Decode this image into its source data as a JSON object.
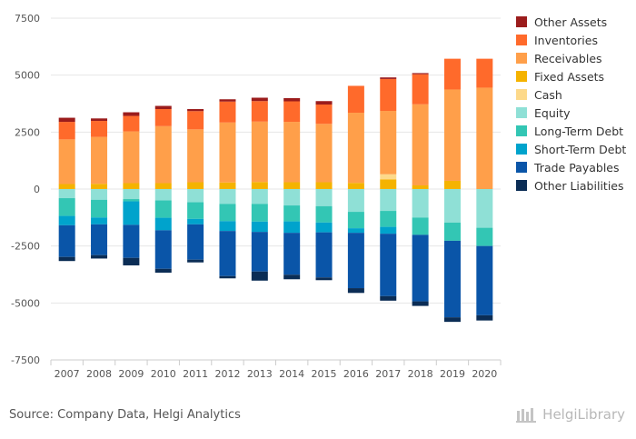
{
  "chart_data": {
    "type": "bar",
    "stacked": true,
    "categories": [
      "2007",
      "2008",
      "2009",
      "2010",
      "2011",
      "2012",
      "2013",
      "2014",
      "2015",
      "2016",
      "2017",
      "2018",
      "2019",
      "2020"
    ],
    "ylim": [
      -7500,
      7500
    ],
    "yticks": [
      -7500,
      -5000,
      -2500,
      0,
      2500,
      5000,
      7500
    ],
    "ytick_labels": [
      "-7500",
      "-5000",
      "-2500",
      "0",
      "2500",
      "5000",
      "7500"
    ],
    "grid": true,
    "legend_position": "right",
    "assets": [
      {
        "name": "Fixed Assets",
        "color": "#f5b300",
        "values": [
          220,
          230,
          260,
          260,
          300,
          290,
          310,
          300,
          300,
          270,
          420,
          160,
          360,
          0
        ]
      },
      {
        "name": "Cash",
        "color": "#fdd98a",
        "values": [
          0,
          0,
          0,
          0,
          0,
          0,
          0,
          0,
          0,
          0,
          230,
          0,
          0,
          0
        ]
      },
      {
        "name": "Receivables",
        "color": "#ff9f4a",
        "values": [
          1960,
          2060,
          2270,
          2500,
          2320,
          2630,
          2650,
          2650,
          2560,
          3080,
          2780,
          3560,
          4010,
          4450
        ]
      },
      {
        "name": "Inventories",
        "color": "#ff6a2b",
        "values": [
          770,
          700,
          680,
          750,
          800,
          920,
          900,
          900,
          850,
          1180,
          1400,
          1320,
          1350,
          1270
        ]
      },
      {
        "name": "Other Assets",
        "color": "#9b1c1c",
        "values": [
          180,
          110,
          160,
          140,
          90,
          100,
          150,
          140,
          150,
          0,
          70,
          50,
          0,
          0
        ]
      }
    ],
    "liabilities": [
      {
        "name": "Equity",
        "color": "#8fe0d6",
        "values": [
          400,
          470,
          440,
          500,
          580,
          650,
          650,
          720,
          750,
          1000,
          960,
          1250,
          1470,
          1700
        ]
      },
      {
        "name": "Long-Term Debt",
        "color": "#33c6b4",
        "values": [
          780,
          780,
          100,
          760,
          730,
          760,
          780,
          700,
          720,
          720,
          700,
          760,
          800,
          800
        ]
      },
      {
        "name": "Short-Term Debt",
        "color": "#00a3cc",
        "values": [
          410,
          300,
          1030,
          550,
          240,
          430,
          450,
          500,
          430,
          200,
          300,
          0,
          0,
          0
        ]
      },
      {
        "name": "Trade Payables",
        "color": "#0a55a8",
        "values": [
          1390,
          1350,
          1450,
          1690,
          1550,
          1980,
          1740,
          1840,
          1980,
          2430,
          2740,
          2920,
          3360,
          3040
        ]
      },
      {
        "name": "Other Liabilities",
        "color": "#0b2d55",
        "values": [
          180,
          150,
          330,
          170,
          120,
          100,
          400,
          200,
          120,
          210,
          200,
          200,
          200,
          230
        ]
      }
    ],
    "legend": [
      {
        "name": "Other Assets",
        "color": "#9b1c1c"
      },
      {
        "name": "Inventories",
        "color": "#ff6a2b"
      },
      {
        "name": "Receivables",
        "color": "#ff9f4a"
      },
      {
        "name": "Fixed Assets",
        "color": "#f5b300"
      },
      {
        "name": "Cash",
        "color": "#fdd98a"
      },
      {
        "name": "Equity",
        "color": "#8fe0d6"
      },
      {
        "name": "Long-Term Debt",
        "color": "#33c6b4"
      },
      {
        "name": "Short-Term Debt",
        "color": "#00a3cc"
      },
      {
        "name": "Trade Payables",
        "color": "#0a55a8"
      },
      {
        "name": "Other Liabilities",
        "color": "#0b2d55"
      }
    ]
  },
  "footer": {
    "source": "Source: Company Data, Helgi Analytics",
    "brand": "HelgiLibrary"
  }
}
